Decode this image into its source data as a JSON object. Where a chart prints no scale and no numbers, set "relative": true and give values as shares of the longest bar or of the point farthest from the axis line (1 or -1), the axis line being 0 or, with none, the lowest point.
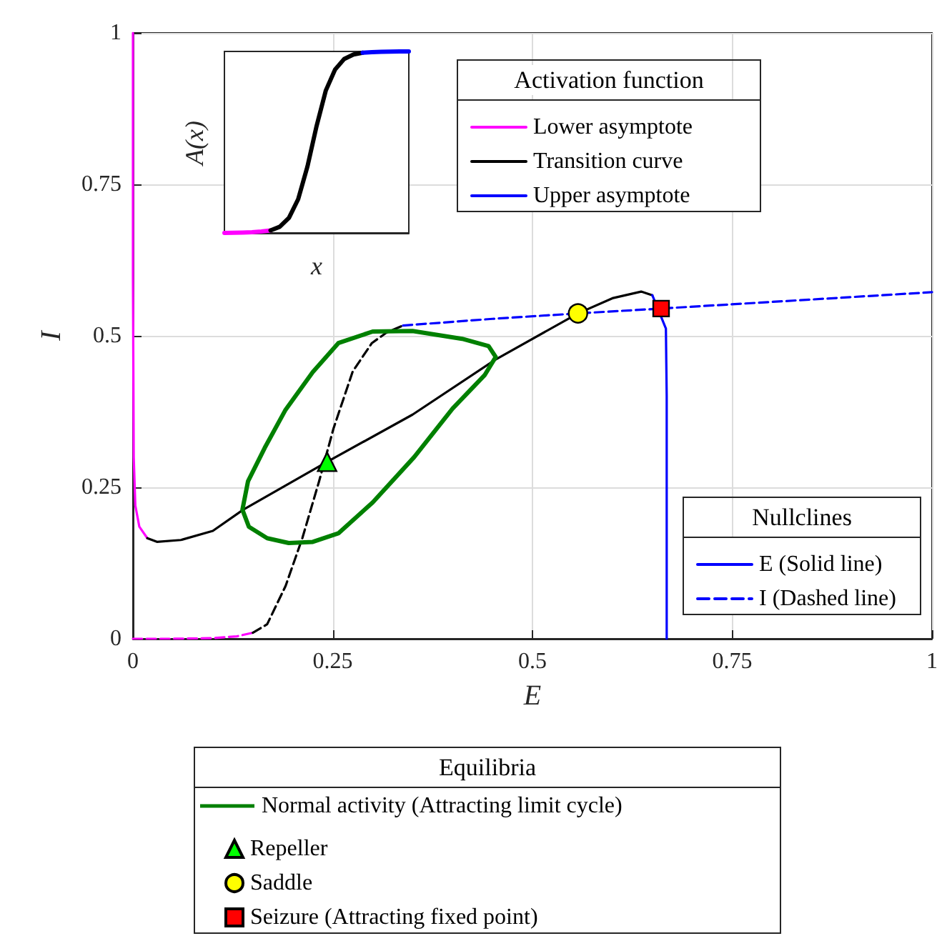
{
  "chart_data": [
    {
      "type": "line",
      "xlabel": "E",
      "ylabel": "I",
      "xlim": [
        0,
        1
      ],
      "ylim": [
        0,
        1
      ],
      "xticks": [
        0,
        0.25,
        0.5,
        0.75,
        1
      ],
      "yticks": [
        0,
        0.25,
        0.5,
        0.75,
        1
      ],
      "grid": true,
      "legend": "bottom right",
      "legend_title": "Nullclines",
      "annotations": [
        "Equilibria",
        "Normal activity (Attracting limit cycle)"
      ],
      "series": [
        {
          "color": "#ff00ff",
          "line_style": "solid",
          "x": [
            0,
            0,
            0.001,
            0.003,
            0.008,
            0.018
          ],
          "values": [
            1,
            0.6,
            0.3,
            0.22,
            0.185,
            0.166
          ]
        },
        {
          "color": "#000000",
          "line_style": "solid",
          "x": [
            0.018,
            0.03,
            0.06,
            0.1,
            0.138,
            0.243,
            0.35,
            0.454,
            0.557,
            0.6,
            0.636,
            0.65
          ],
          "values": [
            0.166,
            0.16,
            0.163,
            0.178,
            0.213,
            0.292,
            0.37,
            0.461,
            0.537,
            0.562,
            0.573,
            0.567
          ]
        },
        {
          "name": "E (Solid line)",
          "color": "#0000ff",
          "line_style": "solid",
          "x": [
            0.65,
            0.667,
            0.668,
            0.668
          ],
          "values": [
            0.567,
            0.512,
            0.4,
            0
          ]
        },
        {
          "color": "#ff00ff",
          "line_style": "dashed",
          "x": [
            0,
            0.05,
            0.1,
            0.13,
            0.15
          ],
          "values": [
            0,
            0,
            0.001,
            0.004,
            0.01
          ]
        },
        {
          "color": "#000000",
          "line_style": "dashed",
          "x": [
            0.15,
            0.168,
            0.191,
            0.212,
            0.233,
            0.251,
            0.275,
            0.299,
            0.317,
            0.338
          ],
          "values": [
            0.01,
            0.024,
            0.087,
            0.166,
            0.26,
            0.347,
            0.441,
            0.488,
            0.505,
            0.517
          ]
        },
        {
          "name": "I (Dashed line)",
          "color": "#0000ff",
          "line_style": "dashed",
          "x": [
            0.338,
            0.45,
            0.557,
            0.661,
            0.8,
            1
          ],
          "values": [
            0.517,
            0.528,
            0.537,
            0.545,
            0.556,
            0.572
          ]
        },
        {
          "name": "Repeller",
          "type": "scatter",
          "marker": "triangle",
          "color": "#00ff00",
          "x": [
            0.243
          ],
          "values": [
            0.292
          ]
        },
        {
          "name": "Saddle",
          "type": "scatter",
          "marker": "circle",
          "color": "#ffff00",
          "x": [
            0.557
          ],
          "values": [
            0.537
          ]
        },
        {
          "name": "Seizure (Attracting fixed point)",
          "type": "scatter",
          "marker": "square",
          "color": "#ff0000",
          "x": [
            0.661
          ],
          "values": [
            0.545
          ]
        }
      ]
    },
    {
      "type": "line",
      "relative": true,
      "xlabel": "x",
      "ylabel": "A(x)",
      "legend": "right",
      "legend_title": "Activation function",
      "categories": [
        null,
        null,
        null,
        null,
        null,
        null,
        null,
        null,
        null,
        null,
        null,
        null,
        null,
        null,
        null,
        null,
        null,
        null,
        null,
        null,
        null
      ],
      "series": [
        {
          "name": "Lower asymptote",
          "color": "#ff00ff",
          "values": [
            0,
            0.001,
            0.002,
            0.004,
            0.008,
            0.014,
            null,
            null,
            null,
            null,
            null,
            null,
            null,
            null,
            null,
            null,
            null,
            null,
            null,
            null,
            null
          ]
        },
        {
          "name": "Transition curve",
          "color": "#000000",
          "values": [
            null,
            null,
            null,
            null,
            null,
            0.014,
            0.034,
            0.083,
            0.186,
            0.365,
            0.59,
            0.785,
            0.9,
            0.959,
            0.983,
            0.993,
            null,
            null,
            null,
            null,
            null
          ]
        },
        {
          "name": "Upper asymptote",
          "color": "#0000ff",
          "values": [
            null,
            null,
            null,
            null,
            null,
            null,
            null,
            null,
            null,
            null,
            null,
            null,
            null,
            null,
            null,
            0.993,
            0.996,
            0.998,
            0.999,
            1,
            1
          ]
        }
      ]
    }
  ]
}
